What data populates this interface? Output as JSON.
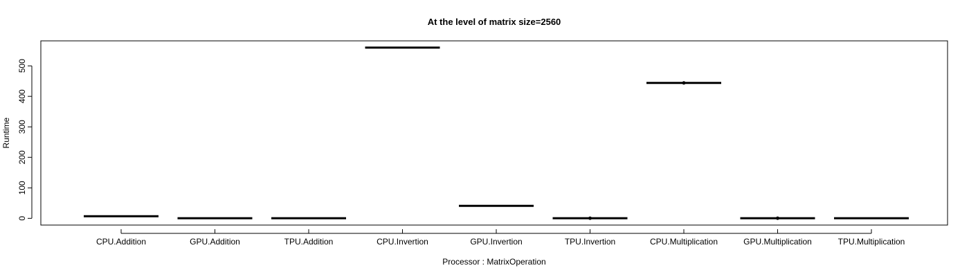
{
  "chart_data": {
    "type": "boxplot",
    "title": "At the level of matrix size=2560",
    "xlabel": "Processor : MatrixOperation",
    "ylabel": "Runtime",
    "categories": [
      "CPU.Addition",
      "GPU.Addition",
      "TPU.Addition",
      "CPU.Invertion",
      "GPU.Invertion",
      "TPU.Invertion",
      "CPU.Multiplication",
      "GPU.Multiplication",
      "TPU.Multiplication"
    ],
    "values": [
      7,
      0.5,
      0.3,
      560,
      41,
      0.5,
      444,
      0.5,
      0.3
    ],
    "outliers": [
      null,
      null,
      null,
      null,
      null,
      0.5,
      444,
      0.5,
      null
    ],
    "yticks": [
      0,
      100,
      200,
      300,
      400,
      500
    ],
    "ylim": [
      -22,
      582
    ],
    "grid": false,
    "legend": "none"
  }
}
